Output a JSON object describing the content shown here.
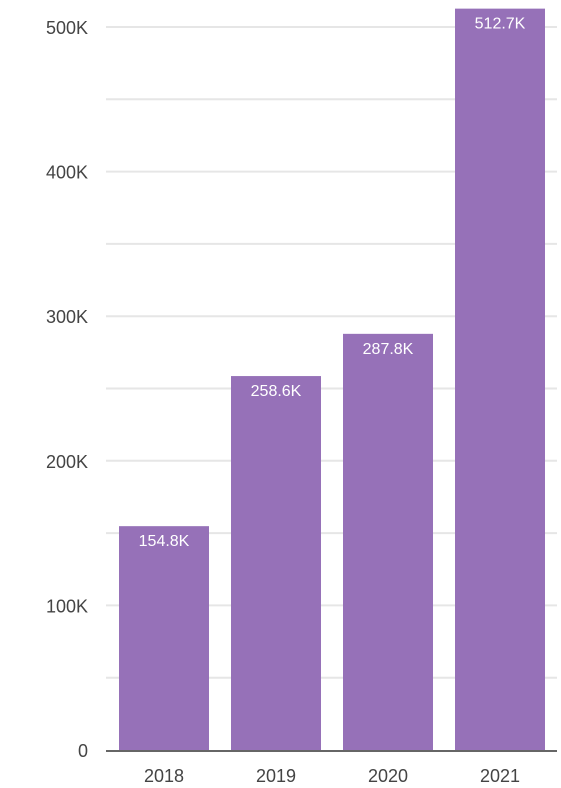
{
  "chart_data": {
    "type": "bar",
    "categories": [
      "2018",
      "2019",
      "2020",
      "2021"
    ],
    "values": [
      154.8,
      258.6,
      287.8,
      512.7
    ],
    "value_unit": "K",
    "data_labels": [
      "154.8K",
      "258.6K",
      "287.8K",
      "512.7K"
    ],
    "y_ticks": [
      0,
      100,
      200,
      300,
      400,
      500
    ],
    "y_tick_labels": [
      "0",
      "100K",
      "200K",
      "300K",
      "400K",
      "500K"
    ],
    "ylim": [
      0,
      500
    ],
    "minor_gridlines": [
      50,
      150,
      250,
      350,
      450
    ],
    "grid": true,
    "title": "",
    "xlabel": "",
    "ylabel": "",
    "legend": "none",
    "colors": {
      "bar": "#9671b8",
      "grid": "#e6e6e6",
      "axis": "#666666",
      "tick_text": "#444444",
      "data_label_text": "#ffffff"
    }
  }
}
